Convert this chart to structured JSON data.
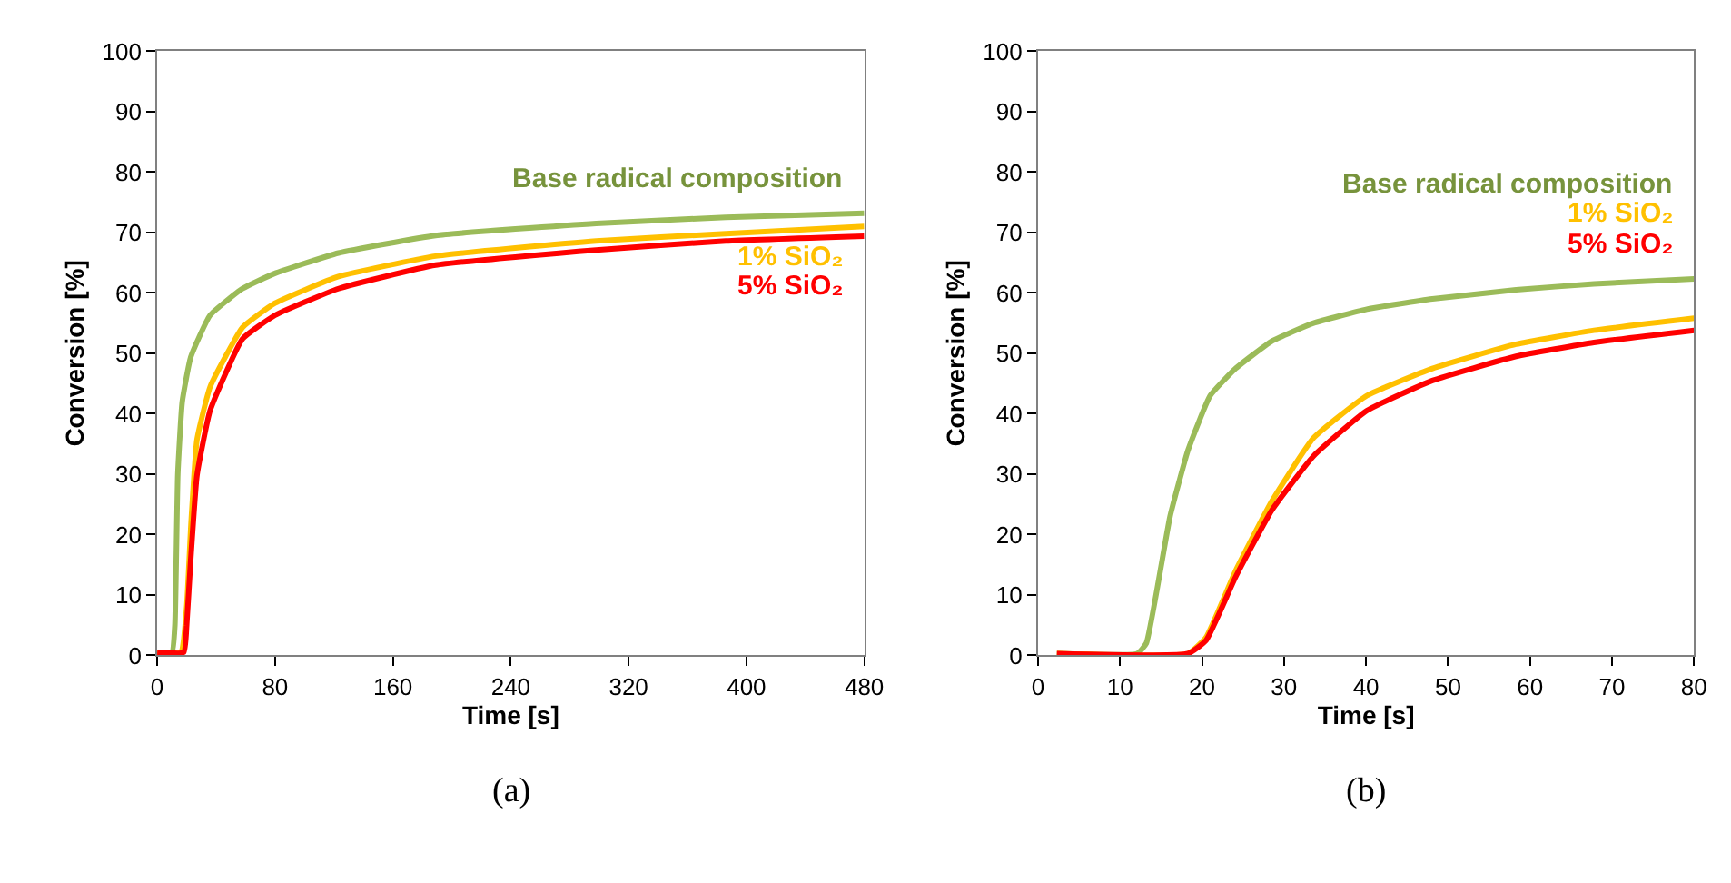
{
  "chart_data": [
    {
      "type": "line",
      "title": "(a)",
      "xlabel": "Time [s]",
      "ylabel": "Conversion [%]",
      "xlim": [
        0,
        480
      ],
      "xticks": [
        0,
        80,
        160,
        240,
        320,
        400,
        480
      ],
      "ylim": [
        0,
        100
      ],
      "yticks": [
        0,
        10,
        20,
        30,
        40,
        50,
        60,
        70,
        80,
        90,
        100
      ],
      "grid": false,
      "legend": false,
      "series": [
        {
          "name": "Base radical composition",
          "color": "#9bbb59",
          "x": [
            0,
            10,
            12,
            14,
            17,
            22.8,
            35.9,
            57.8,
            79.6,
            123,
            189,
            298,
            386,
            480
          ],
          "values": [
            0.5,
            0.5,
            5,
            30,
            42,
            49.4,
            56.3,
            60.7,
            63.2,
            66.6,
            69.5,
            71.5,
            72.5,
            73.2
          ]
        },
        {
          "name": "1% SiO₂",
          "color": "#ffc000",
          "x": [
            0,
            16,
            20,
            23,
            27,
            36,
            58,
            80,
            123,
            189,
            298,
            386,
            480
          ],
          "values": [
            0.5,
            0.5,
            8,
            22,
            35.7,
            44.5,
            54.3,
            58.3,
            62.7,
            66.1,
            68.6,
            69.8,
            71
          ]
        },
        {
          "name": "5% SiO₂",
          "color": "#ff0000",
          "x": [
            0,
            18,
            20,
            22.8,
            27,
            36,
            58,
            80,
            123,
            189,
            298,
            386,
            480
          ],
          "values": [
            0.5,
            0.5,
            5,
            16,
            29.8,
            40.6,
            52.4,
            56.3,
            60.7,
            64.6,
            67.1,
            68.6,
            69.4
          ]
        }
      ]
    },
    {
      "type": "line",
      "title": "(b)",
      "xlabel": "Time [s]",
      "ylabel": "Conversion [%]",
      "xlim": [
        0,
        80
      ],
      "xticks": [
        0,
        10,
        20,
        30,
        40,
        50,
        60,
        70,
        80
      ],
      "ylim": [
        0,
        100
      ],
      "yticks": [
        0,
        10,
        20,
        30,
        40,
        50,
        60,
        70,
        80,
        90,
        100
      ],
      "grid": false,
      "legend": false,
      "series": [
        {
          "name": "Base radical composition",
          "color": "#9bbb59",
          "x": [
            2.3,
            12.1,
            13.2,
            16.1,
            18.3,
            21,
            24.1,
            28.5,
            33.6,
            40.1,
            48.1,
            58.3,
            67.8,
            80
          ],
          "values": [
            0.3,
            0.3,
            2,
            23,
            34,
            43,
            47.5,
            52,
            55,
            57.3,
            59,
            60.5,
            61.5,
            62.3
          ]
        },
        {
          "name": "1% SiO₂",
          "color": "#ffc000",
          "x": [
            2.3,
            18.3,
            20.5,
            24.1,
            28.5,
            33.6,
            40.1,
            48.1,
            58.3,
            67.8,
            80
          ],
          "values": [
            0.3,
            0.3,
            3,
            14,
            25.5,
            36,
            43,
            47.5,
            51.5,
            53.8,
            55.8
          ]
        },
        {
          "name": "5% SiO₂",
          "color": "#ff0000",
          "x": [
            2.3,
            18.3,
            20.5,
            24.1,
            28.5,
            33.6,
            40.1,
            48.1,
            58.3,
            67.8,
            80
          ],
          "values": [
            0.3,
            0.3,
            2.5,
            13,
            24,
            33,
            40.5,
            45.5,
            49.5,
            51.8,
            53.8
          ]
        }
      ]
    }
  ]
}
